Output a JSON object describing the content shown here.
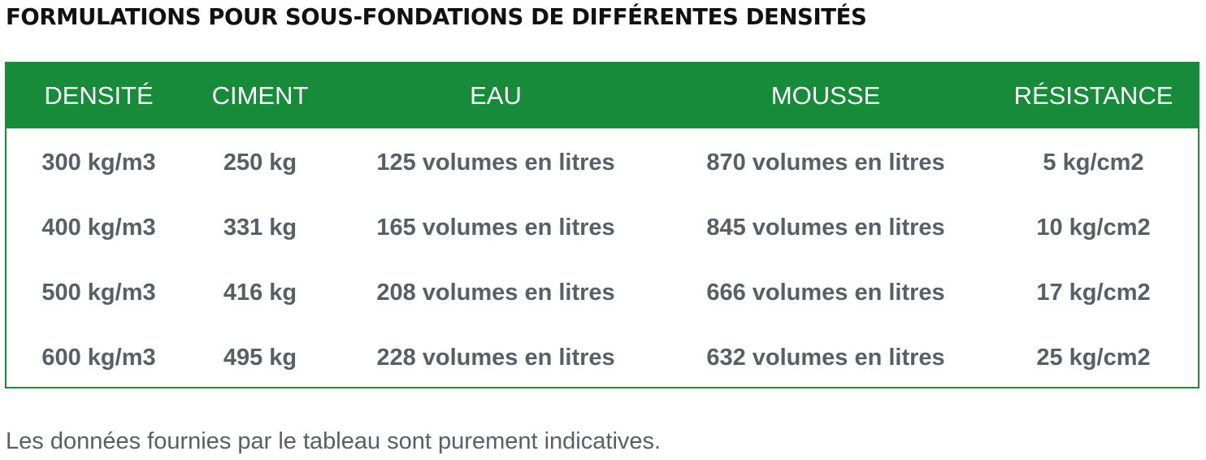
{
  "title": "FORMULATIONS POUR SOUS-FONDATIONS DE DIFFÉRENTES DENSITÉS",
  "table": {
    "headers": [
      "DENSITÉ",
      "CIMENT",
      "EAU",
      "MOUSSE",
      "RÉSISTANCE"
    ],
    "rows": [
      [
        "300 kg/m3",
        "250 kg",
        "125 volumes en litres",
        "870 volumes en litres",
        "5 kg/cm2"
      ],
      [
        "400 kg/m3",
        "331 kg",
        "165 volumes en litres",
        "845 volumes en litres",
        "10 kg/cm2"
      ],
      [
        "500 kg/m3",
        "416 kg",
        "208 volumes en litres",
        "666 volumes en litres",
        "17 kg/cm2"
      ],
      [
        "600 kg/m3",
        "495 kg",
        "228 volumes en litres",
        "632 volumes en litres",
        "25 kg/cm2"
      ]
    ]
  },
  "footnote": "Les données fournies par le tableau sont purement indicatives.",
  "colors": {
    "header_background": "#178b39",
    "border": "#1a8b3a",
    "cell_text": "#5a5e66"
  }
}
